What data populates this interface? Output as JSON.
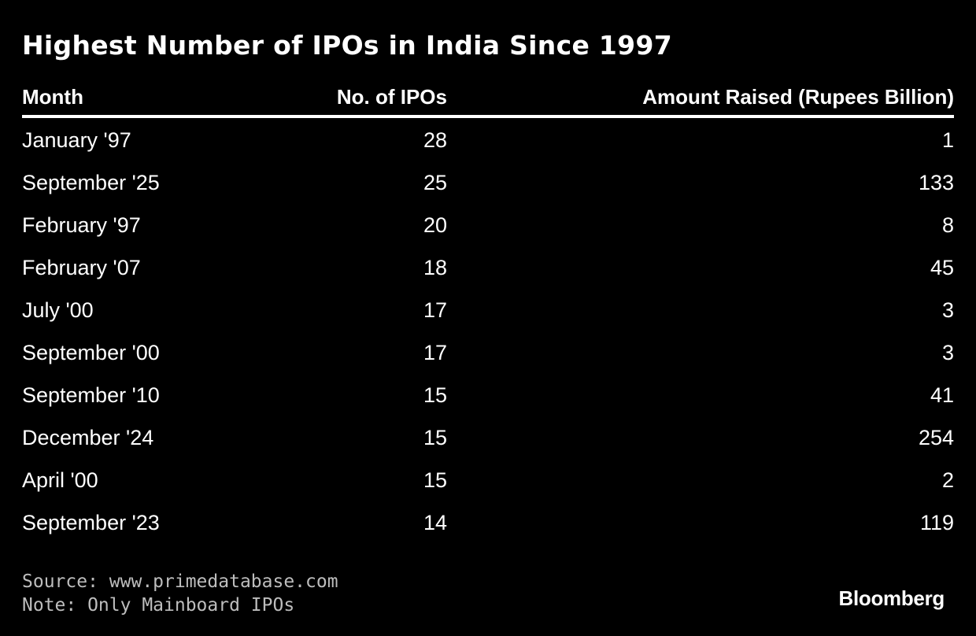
{
  "chart_data": {
    "type": "table",
    "title": "Highest Number of IPOs in India Since 1997",
    "columns": [
      "Month",
      "No. of IPOs",
      "Amount Raised (Rupees Billion)"
    ],
    "rows": [
      [
        "January '97",
        "28",
        "1"
      ],
      [
        "September '25",
        "25",
        "133"
      ],
      [
        "February '97",
        "20",
        "8"
      ],
      [
        "February '07",
        "18",
        "45"
      ],
      [
        "July '00",
        "17",
        "3"
      ],
      [
        "September '00",
        "17",
        "3"
      ],
      [
        "September '10",
        "15",
        "41"
      ],
      [
        "December '24",
        "15",
        "254"
      ],
      [
        "April '00",
        "15",
        "2"
      ],
      [
        "September '23",
        "14",
        "119"
      ]
    ]
  },
  "footer": {
    "source": "Source: www.primedatabase.com",
    "note": "Note: Only Mainboard IPOs"
  },
  "brand": "Bloomberg",
  "colors": {
    "background": "#000000",
    "text": "#ffffff",
    "footer_text": "#bdbdbd"
  }
}
